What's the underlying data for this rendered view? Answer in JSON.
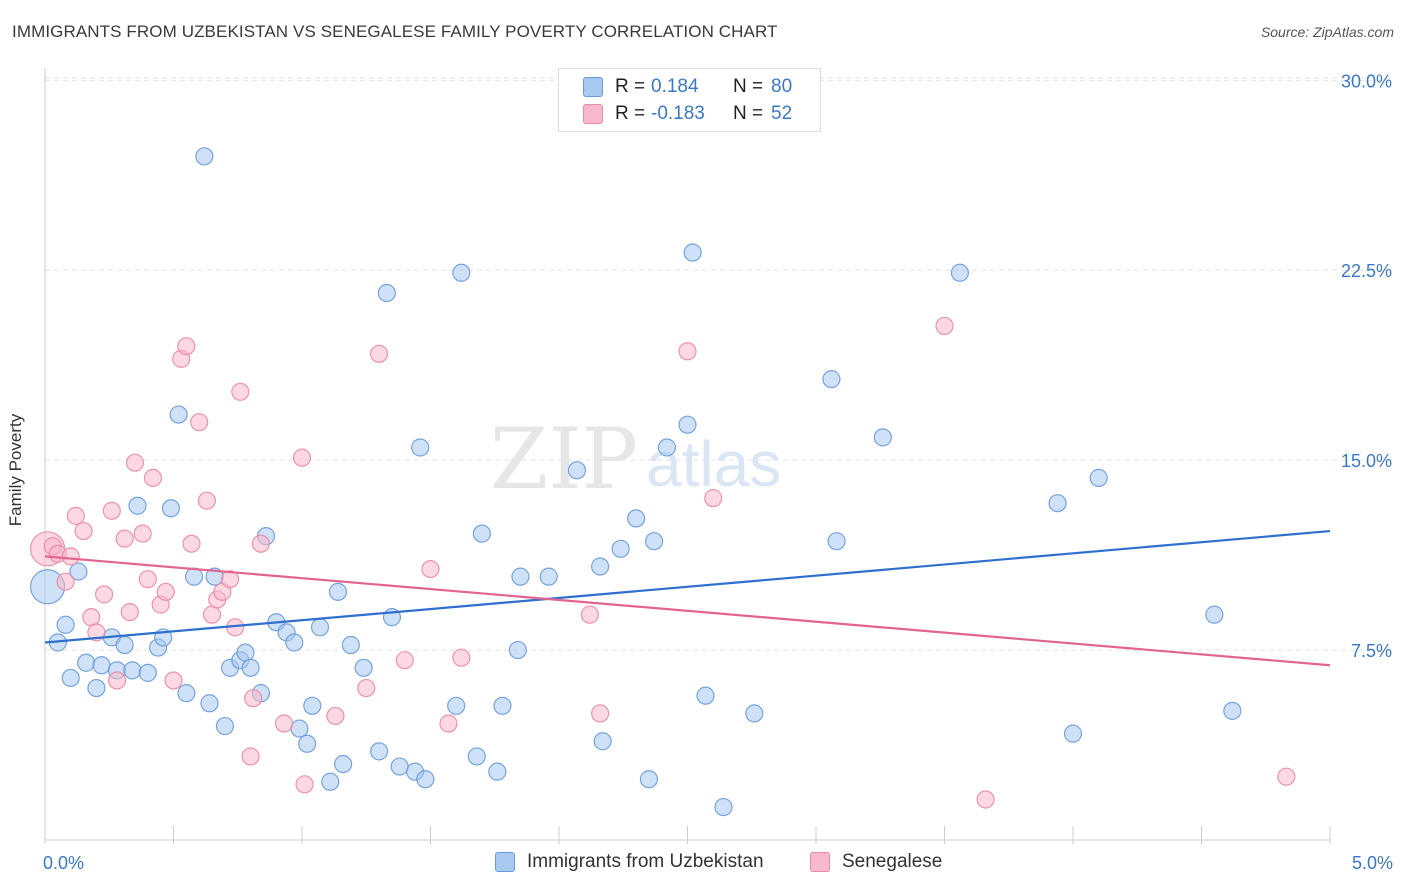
{
  "title": "IMMIGRANTS FROM UZBEKISTAN VS SENEGALESE FAMILY POVERTY CORRELATION CHART",
  "source": "Source: ZipAtlas.com",
  "watermark": {
    "zip": "ZIP",
    "atlas": "atlas"
  },
  "legend": {
    "rows": [
      {
        "r_label": "R =",
        "r_value": "0.184",
        "n_label": "N =",
        "n_value": "80"
      },
      {
        "r_label": "R =",
        "r_value": "-0.183",
        "n_label": "N =",
        "n_value": "52"
      }
    ]
  },
  "bottom_legend": {
    "items": [
      {
        "label": "Immigrants from Uzbekistan"
      },
      {
        "label": "Senegalese"
      }
    ]
  },
  "chart_data": {
    "type": "scatter",
    "title": "IMMIGRANTS FROM UZBEKISTAN VS SENEGALESE FAMILY POVERTY CORRELATION CHART",
    "xlabel": "",
    "ylabel": "Family Poverty",
    "xlim": [
      0,
      5
    ],
    "ylim": [
      0,
      31
    ],
    "x_tick_labels": [
      "0.0%",
      "5.0%"
    ],
    "y_ticks": [
      7.5,
      15.0,
      22.5,
      30.0
    ],
    "y_tick_labels": [
      "7.5%",
      "15.0%",
      "22.5%",
      "30.0%"
    ],
    "grid": true,
    "legend_position": "top-center",
    "colors": {
      "uzbekistan_fill": "#a8c8f0",
      "uzbekistan_stroke": "#6a9ad8",
      "uzbekistan_line": "#2e6fcf",
      "senegalese_fill": "#f7b8cb",
      "senegalese_stroke": "#e88aa8",
      "senegalese_line": "#e2648f",
      "tick_label": "#3a78c8",
      "grid": "#e2e2e2"
    },
    "series": [
      {
        "name": "Immigrants from Uzbekistan",
        "trend": {
          "x": [
            0,
            5
          ],
          "y": [
            7.8,
            12.2
          ]
        },
        "points": [
          {
            "x": 0.01,
            "y": 10.0,
            "big": true
          },
          {
            "x": 0.05,
            "y": 7.8
          },
          {
            "x": 0.08,
            "y": 8.5
          },
          {
            "x": 0.1,
            "y": 6.4
          },
          {
            "x": 0.13,
            "y": 10.6
          },
          {
            "x": 0.16,
            "y": 7.0
          },
          {
            "x": 0.2,
            "y": 6.0
          },
          {
            "x": 0.22,
            "y": 6.9
          },
          {
            "x": 0.26,
            "y": 8.0
          },
          {
            "x": 0.28,
            "y": 6.7
          },
          {
            "x": 0.31,
            "y": 7.7
          },
          {
            "x": 0.34,
            "y": 6.7
          },
          {
            "x": 0.36,
            "y": 13.2
          },
          {
            "x": 0.4,
            "y": 6.6
          },
          {
            "x": 0.44,
            "y": 7.6
          },
          {
            "x": 0.46,
            "y": 8.0
          },
          {
            "x": 0.49,
            "y": 13.1
          },
          {
            "x": 0.52,
            "y": 16.8
          },
          {
            "x": 0.55,
            "y": 5.8
          },
          {
            "x": 0.58,
            "y": 10.4
          },
          {
            "x": 0.62,
            "y": 27.0
          },
          {
            "x": 0.64,
            "y": 5.4
          },
          {
            "x": 0.66,
            "y": 10.4
          },
          {
            "x": 0.7,
            "y": 4.5
          },
          {
            "x": 0.72,
            "y": 6.8
          },
          {
            "x": 0.76,
            "y": 7.1
          },
          {
            "x": 0.78,
            "y": 7.4
          },
          {
            "x": 0.8,
            "y": 6.8
          },
          {
            "x": 0.84,
            "y": 5.8
          },
          {
            "x": 0.86,
            "y": 12.0
          },
          {
            "x": 0.9,
            "y": 8.6
          },
          {
            "x": 0.94,
            "y": 8.2
          },
          {
            "x": 0.97,
            "y": 7.8
          },
          {
            "x": 0.99,
            "y": 4.4
          },
          {
            "x": 1.02,
            "y": 3.8
          },
          {
            "x": 1.04,
            "y": 5.3
          },
          {
            "x": 1.07,
            "y": 8.4
          },
          {
            "x": 1.11,
            "y": 2.3
          },
          {
            "x": 1.14,
            "y": 9.8
          },
          {
            "x": 1.16,
            "y": 3.0
          },
          {
            "x": 1.19,
            "y": 7.7
          },
          {
            "x": 1.24,
            "y": 6.8
          },
          {
            "x": 1.3,
            "y": 3.5
          },
          {
            "x": 1.33,
            "y": 21.6
          },
          {
            "x": 1.35,
            "y": 8.8
          },
          {
            "x": 1.38,
            "y": 2.9
          },
          {
            "x": 1.44,
            "y": 2.7
          },
          {
            "x": 1.46,
            "y": 15.5
          },
          {
            "x": 1.48,
            "y": 2.4
          },
          {
            "x": 1.6,
            "y": 5.3
          },
          {
            "x": 1.62,
            "y": 22.4
          },
          {
            "x": 1.68,
            "y": 3.3
          },
          {
            "x": 1.7,
            "y": 12.1
          },
          {
            "x": 1.76,
            "y": 2.7
          },
          {
            "x": 1.78,
            "y": 5.3
          },
          {
            "x": 1.84,
            "y": 7.5
          },
          {
            "x": 1.85,
            "y": 10.4
          },
          {
            "x": 1.96,
            "y": 10.4
          },
          {
            "x": 2.07,
            "y": 14.6
          },
          {
            "x": 2.16,
            "y": 10.8
          },
          {
            "x": 2.17,
            "y": 3.9
          },
          {
            "x": 2.24,
            "y": 11.5
          },
          {
            "x": 2.3,
            "y": 12.7
          },
          {
            "x": 2.35,
            "y": 2.4
          },
          {
            "x": 2.37,
            "y": 11.8
          },
          {
            "x": 2.42,
            "y": 15.5
          },
          {
            "x": 2.5,
            "y": 16.4
          },
          {
            "x": 2.52,
            "y": 23.2
          },
          {
            "x": 2.57,
            "y": 5.7
          },
          {
            "x": 2.64,
            "y": 1.3
          },
          {
            "x": 2.76,
            "y": 5.0
          },
          {
            "x": 3.06,
            "y": 18.2
          },
          {
            "x": 3.08,
            "y": 11.8
          },
          {
            "x": 3.26,
            "y": 15.9
          },
          {
            "x": 3.56,
            "y": 22.4
          },
          {
            "x": 3.94,
            "y": 13.3
          },
          {
            "x": 4.0,
            "y": 4.2
          },
          {
            "x": 4.1,
            "y": 14.3
          },
          {
            "x": 4.55,
            "y": 8.9
          },
          {
            "x": 4.62,
            "y": 5.1
          }
        ]
      },
      {
        "name": "Senegalese",
        "trend": {
          "x": [
            0,
            5
          ],
          "y": [
            11.2,
            6.9
          ]
        },
        "points": [
          {
            "x": 0.01,
            "y": 11.5,
            "big": true
          },
          {
            "x": 0.03,
            "y": 11.6
          },
          {
            "x": 0.05,
            "y": 11.3
          },
          {
            "x": 0.08,
            "y": 10.2
          },
          {
            "x": 0.1,
            "y": 11.2
          },
          {
            "x": 0.12,
            "y": 12.8
          },
          {
            "x": 0.15,
            "y": 12.2
          },
          {
            "x": 0.18,
            "y": 8.8
          },
          {
            "x": 0.2,
            "y": 8.2
          },
          {
            "x": 0.23,
            "y": 9.7
          },
          {
            "x": 0.26,
            "y": 13.0
          },
          {
            "x": 0.28,
            "y": 6.3
          },
          {
            "x": 0.31,
            "y": 11.9
          },
          {
            "x": 0.33,
            "y": 9.0
          },
          {
            "x": 0.35,
            "y": 14.9
          },
          {
            "x": 0.38,
            "y": 12.1
          },
          {
            "x": 0.4,
            "y": 10.3
          },
          {
            "x": 0.42,
            "y": 14.3
          },
          {
            "x": 0.45,
            "y": 9.3
          },
          {
            "x": 0.47,
            "y": 9.8
          },
          {
            "x": 0.5,
            "y": 6.3
          },
          {
            "x": 0.53,
            "y": 19.0
          },
          {
            "x": 0.55,
            "y": 19.5
          },
          {
            "x": 0.57,
            "y": 11.7
          },
          {
            "x": 0.6,
            "y": 16.5
          },
          {
            "x": 0.63,
            "y": 13.4
          },
          {
            "x": 0.65,
            "y": 8.9
          },
          {
            "x": 0.67,
            "y": 9.5
          },
          {
            "x": 0.69,
            "y": 9.8
          },
          {
            "x": 0.72,
            "y": 10.3
          },
          {
            "x": 0.74,
            "y": 8.4
          },
          {
            "x": 0.76,
            "y": 17.7
          },
          {
            "x": 0.8,
            "y": 3.3
          },
          {
            "x": 0.81,
            "y": 5.6
          },
          {
            "x": 0.84,
            "y": 11.7
          },
          {
            "x": 0.93,
            "y": 4.6
          },
          {
            "x": 1.0,
            "y": 15.1
          },
          {
            "x": 1.01,
            "y": 2.2
          },
          {
            "x": 1.13,
            "y": 4.9
          },
          {
            "x": 1.25,
            "y": 6.0
          },
          {
            "x": 1.3,
            "y": 19.2
          },
          {
            "x": 1.4,
            "y": 7.1
          },
          {
            "x": 1.5,
            "y": 10.7
          },
          {
            "x": 1.57,
            "y": 4.6
          },
          {
            "x": 1.62,
            "y": 7.2
          },
          {
            "x": 2.12,
            "y": 8.9
          },
          {
            "x": 2.16,
            "y": 5.0
          },
          {
            "x": 2.5,
            "y": 19.3
          },
          {
            "x": 2.6,
            "y": 13.5
          },
          {
            "x": 3.5,
            "y": 20.3
          },
          {
            "x": 3.66,
            "y": 1.6
          },
          {
            "x": 4.83,
            "y": 2.5
          }
        ]
      }
    ]
  }
}
